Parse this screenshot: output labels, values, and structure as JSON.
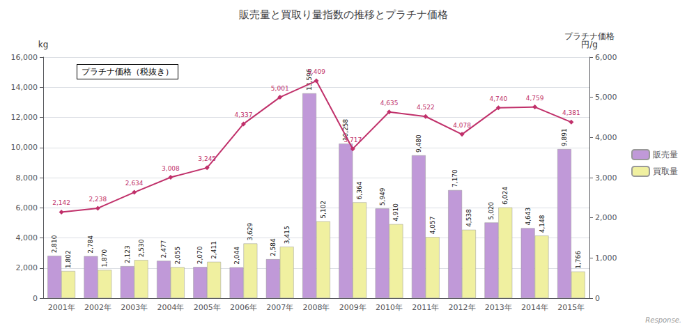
{
  "chart_data": {
    "type": "bar",
    "title": "販売量と買取り量指数の推移とプラチナ価格",
    "categories": [
      "2001年",
      "2002年",
      "2003年",
      "2004年",
      "2005年",
      "2006年",
      "2007年",
      "2008年",
      "2009年",
      "2010年",
      "2011年",
      "2012年",
      "2013年",
      "2014年",
      "2015年"
    ],
    "series": [
      {
        "name": "販売量",
        "type": "bar",
        "color": "#c099d8",
        "values": [
          2810,
          2784,
          2123,
          2477,
          2070,
          2044,
          2584,
          13596,
          10258,
          5949,
          9480,
          7170,
          5020,
          4643,
          9891
        ],
        "value_labels": [
          "2,810",
          "2,784",
          "2,123",
          "2,477",
          "2,070",
          "2,044",
          "2,584",
          "13,596",
          "10,258",
          "5,949",
          "9,480",
          "7,170",
          "5,020",
          "4,643",
          "9,891"
        ]
      },
      {
        "name": "買取量",
        "type": "bar",
        "color": "#f0f0a0",
        "values": [
          1802,
          1870,
          2530,
          2055,
          2411,
          3629,
          3415,
          5102,
          6364,
          4910,
          4057,
          4538,
          6024,
          4148,
          1766
        ],
        "value_labels": [
          "1,802",
          "1,870",
          "2,530",
          "2,055",
          "2,411",
          "3,629",
          "3,415",
          "5,102",
          "6,364",
          "4,910",
          "4,057",
          "4,538",
          "6,024",
          "4,148",
          "1,766"
        ]
      },
      {
        "type": "line",
        "axis": "y2",
        "color": "#c0306a",
        "marker": "diamond",
        "values": [
          2142,
          2238,
          2634,
          3008,
          3245,
          4337,
          5001,
          5409,
          3717,
          4635,
          4522,
          4078,
          4740,
          4759,
          4381
        ],
        "value_labels": [
          "2,142",
          "2,238",
          "2,634",
          "3,008",
          "3,245",
          "4,337",
          "5,001",
          "5,409",
          "3,717",
          "4,635",
          "4,522",
          "4,078",
          "4,740",
          "4,759",
          "4,381"
        ]
      }
    ],
    "ylabel": "kg",
    "y2label": "プラチナ価格\n円/g",
    "ylim": [
      0,
      16000
    ],
    "yticks": [
      0,
      {
        "value": 2000,
        "label": "2,000"
      },
      {
        "value": 4000,
        "label": "4,000"
      },
      {
        "value": 6000,
        "label": "6,000"
      },
      {
        "value": 8000,
        "label": "8,000"
      },
      {
        "value": 10000,
        "label": "10,000"
      },
      {
        "value": 12000,
        "label": "12,000"
      },
      {
        "value": 14000,
        "label": "14,000"
      },
      {
        "value": 16000,
        "label": "16,000"
      }
    ],
    "y2lim": [
      0,
      6000
    ],
    "y2ticks": [
      0,
      {
        "value": 1000,
        "label": "1,000"
      },
      {
        "value": 2000,
        "label": "2,000"
      },
      {
        "value": 3000,
        "label": "3,000"
      },
      {
        "value": 4000,
        "label": "4,000"
      },
      {
        "value": 5000,
        "label": "5,000"
      },
      {
        "value": 6000,
        "label": "6,000"
      }
    ],
    "grid": true,
    "legend": "right",
    "data_labels": true,
    "annotations": [
      "プラチナ価格（税抜き）",
      "Response."
    ]
  }
}
